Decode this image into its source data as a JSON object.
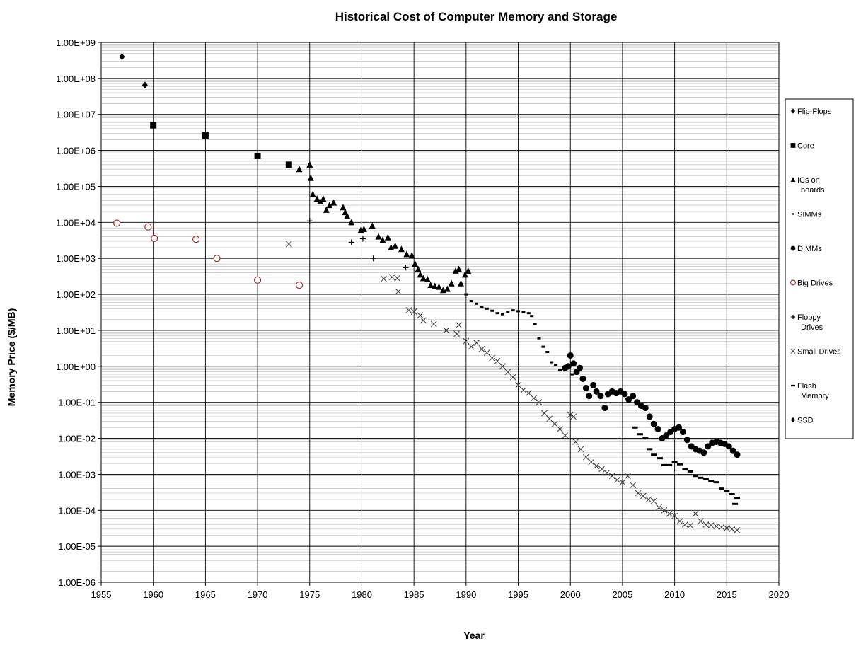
{
  "chart_data": {
    "type": "scatter",
    "title": "Historical Cost of Computer Memory and Storage",
    "xlabel": "Year",
    "ylabel": "Memory Price ($/MB)",
    "xlim": [
      1955,
      2020
    ],
    "ylim": [
      1e-06,
      1000000000.0
    ],
    "y_scale": "log",
    "grid": true,
    "legend_position": "right",
    "x_ticks": [
      "1955",
      "1960",
      "1965",
      "1970",
      "1975",
      "1980",
      "1985",
      "1990",
      "1995",
      "2000",
      "2005",
      "2010",
      "2015",
      "2020"
    ],
    "y_ticks": [
      "1.00E-06",
      "1.00E-05",
      "1.00E-04",
      "1.00E-03",
      "1.00E-02",
      "1.00E-01",
      "1.00E+00",
      "1.00E+01",
      "1.00E+02",
      "1.00E+03",
      "1.00E+04",
      "1.00E+05",
      "1.00E+06",
      "1.00E+07",
      "1.00E+08",
      "1.00E+09"
    ],
    "series": [
      {
        "name": "Flip-Flops",
        "marker": "diamond",
        "color": "#000000",
        "points": [
          [
            1957.0,
            400000000.0
          ],
          [
            1959.2,
            65000000.0
          ]
        ]
      },
      {
        "name": "Core",
        "marker": "square",
        "color": "#000000",
        "points": [
          [
            1960.0,
            5000000.0
          ],
          [
            1965.0,
            2600000.0
          ],
          [
            1970.0,
            700000.0
          ],
          [
            1973.0,
            400000.0
          ]
        ]
      },
      {
        "name": "ICs on\nboards",
        "marker": "triangle",
        "color": "#000000",
        "points": [
          [
            1974.0,
            300000.0
          ],
          [
            1975.0,
            400000.0
          ],
          [
            1975.1,
            170000.0
          ],
          [
            1975.3,
            60000.0
          ],
          [
            1975.7,
            45000.0
          ],
          [
            1976.0,
            38000.0
          ],
          [
            1976.3,
            45000.0
          ],
          [
            1976.6,
            22000.0
          ],
          [
            1976.9,
            30000.0
          ],
          [
            1977.3,
            35000.0
          ],
          [
            1978.2,
            26000.0
          ],
          [
            1978.4,
            19000.0
          ],
          [
            1978.6,
            15000.0
          ],
          [
            1979.0,
            10000.0
          ],
          [
            1979.9,
            6000.0
          ],
          [
            1980.2,
            6500.0
          ],
          [
            1981.0,
            8000.0
          ],
          [
            1981.6,
            4000.0
          ],
          [
            1982.0,
            3200.0
          ],
          [
            1982.5,
            3800.0
          ],
          [
            1982.8,
            2000.0
          ],
          [
            1983.2,
            2200.0
          ],
          [
            1983.8,
            1800.0
          ],
          [
            1984.3,
            1300.0
          ],
          [
            1984.8,
            1200.0
          ],
          [
            1985.1,
            700.0
          ],
          [
            1985.4,
            500.0
          ],
          [
            1985.6,
            350.0
          ],
          [
            1985.9,
            280.0
          ],
          [
            1986.3,
            260.0
          ],
          [
            1986.6,
            180.0
          ],
          [
            1987.0,
            170.0
          ],
          [
            1987.4,
            160.0
          ],
          [
            1987.8,
            130.0
          ],
          [
            1988.2,
            140.0
          ],
          [
            1988.6,
            200.0
          ],
          [
            1989.0,
            450.0
          ],
          [
            1989.3,
            500.0
          ],
          [
            1989.5,
            200.0
          ],
          [
            1989.9,
            350.0
          ],
          [
            1990.2,
            450.0
          ]
        ]
      },
      {
        "name": "SIMMs",
        "marker": "dash",
        "color": "#000000",
        "points": [
          [
            1990.0,
            100.0
          ],
          [
            1990.5,
            65.0
          ],
          [
            1991.0,
            55.0
          ],
          [
            1991.5,
            45.0
          ],
          [
            1992.0,
            40.0
          ],
          [
            1992.5,
            35.0
          ],
          [
            1993.0,
            30.0
          ],
          [
            1993.5,
            28.0
          ],
          [
            1994.0,
            33.0
          ],
          [
            1994.5,
            36.0
          ],
          [
            1995.0,
            34.0
          ],
          [
            1995.5,
            32.0
          ],
          [
            1996.0,
            30.0
          ],
          [
            1996.3,
            25.0
          ],
          [
            1996.6,
            15.0
          ],
          [
            1997.0,
            6.0
          ],
          [
            1997.4,
            3.5
          ],
          [
            1997.8,
            2.5
          ],
          [
            1998.2,
            1.3
          ],
          [
            1998.6,
            1.1
          ],
          [
            1999.0,
            0.8
          ],
          [
            1999.4,
            0.9
          ],
          [
            1999.8,
            1.0
          ],
          [
            2000.2,
            0.6
          ]
        ]
      },
      {
        "name": "DIMMs",
        "marker": "circle",
        "color": "#000000",
        "points": [
          [
            1999.5,
            0.9
          ],
          [
            1999.8,
            1.0
          ],
          [
            2000.0,
            2.0
          ],
          [
            2000.3,
            1.2
          ],
          [
            2000.6,
            0.7
          ],
          [
            2000.9,
            0.9
          ],
          [
            2001.2,
            0.45
          ],
          [
            2001.5,
            0.25
          ],
          [
            2001.8,
            0.15
          ],
          [
            2002.2,
            0.3
          ],
          [
            2002.5,
            0.2
          ],
          [
            2002.9,
            0.15
          ],
          [
            2003.3,
            0.07
          ],
          [
            2003.6,
            0.17
          ],
          [
            2004.0,
            0.2
          ],
          [
            2004.4,
            0.18
          ],
          [
            2004.8,
            0.2
          ],
          [
            2005.2,
            0.17
          ],
          [
            2005.6,
            0.12
          ],
          [
            2006.0,
            0.15
          ],
          [
            2006.4,
            0.1
          ],
          [
            2006.8,
            0.08
          ],
          [
            2007.2,
            0.07
          ],
          [
            2007.6,
            0.04
          ],
          [
            2008.0,
            0.025
          ],
          [
            2008.4,
            0.018
          ],
          [
            2008.8,
            0.01
          ],
          [
            2009.2,
            0.012
          ],
          [
            2009.6,
            0.015
          ],
          [
            2010.0,
            0.018
          ],
          [
            2010.4,
            0.02
          ],
          [
            2010.8,
            0.015
          ],
          [
            2011.2,
            0.009
          ],
          [
            2011.6,
            0.006
          ],
          [
            2012.0,
            0.005
          ],
          [
            2012.4,
            0.0045
          ],
          [
            2012.8,
            0.004
          ],
          [
            2013.2,
            0.006
          ],
          [
            2013.6,
            0.0075
          ],
          [
            2014.0,
            0.008
          ],
          [
            2014.4,
            0.0075
          ],
          [
            2014.8,
            0.007
          ],
          [
            2015.2,
            0.006
          ],
          [
            2015.6,
            0.0045
          ],
          [
            2016.0,
            0.0035
          ]
        ]
      },
      {
        "name": "Big Drives",
        "marker": "open-circle",
        "color": "#a0302a",
        "points": [
          [
            1956.5,
            9500.0
          ],
          [
            1959.5,
            7500.0
          ],
          [
            1960.1,
            3600.0
          ],
          [
            1964.1,
            3400.0
          ],
          [
            1966.1,
            1000.0
          ],
          [
            1970.0,
            250.0
          ],
          [
            1974.0,
            180.0
          ]
        ]
      },
      {
        "name": "Floppy\nDrives",
        "marker": "plus",
        "color": "#000000",
        "points": [
          [
            1975.0,
            11000.0
          ],
          [
            1979.0,
            2800.0
          ],
          [
            1980.1,
            3500.0
          ],
          [
            1981.1,
            1000.0
          ],
          [
            1984.2,
            550.0
          ]
        ]
      },
      {
        "name": "Small Drives",
        "marker": "x",
        "color": "#444444",
        "points": [
          [
            1973.0,
            2500.0
          ],
          [
            1982.1,
            270.0
          ],
          [
            1982.9,
            300.0
          ],
          [
            1983.4,
            280.0
          ],
          [
            1983.5,
            120.0
          ],
          [
            1984.5,
            36.0
          ],
          [
            1985.0,
            33.0
          ],
          [
            1985.6,
            26.0
          ],
          [
            1985.9,
            19.0
          ],
          [
            1986.9,
            15.0
          ],
          [
            1988.1,
            10.0
          ],
          [
            1989.1,
            8.0
          ],
          [
            1989.3,
            14.0
          ],
          [
            1990.0,
            5.0
          ],
          [
            1990.5,
            3.5
          ],
          [
            1991.0,
            4.5
          ],
          [
            1991.5,
            3.0
          ],
          [
            1992.0,
            2.4
          ],
          [
            1992.5,
            1.7
          ],
          [
            1993.0,
            1.4
          ],
          [
            1993.5,
            1.0
          ],
          [
            1994.0,
            0.7
          ],
          [
            1994.5,
            0.5
          ],
          [
            1995.0,
            0.3
          ],
          [
            1995.5,
            0.22
          ],
          [
            1996.0,
            0.18
          ],
          [
            1996.5,
            0.13
          ],
          [
            1997.0,
            0.1
          ],
          [
            1997.5,
            0.05
          ],
          [
            1998.0,
            0.035
          ],
          [
            1998.5,
            0.025
          ],
          [
            1999.0,
            0.018
          ],
          [
            1999.5,
            0.012
          ],
          [
            2000.0,
            0.045
          ],
          [
            2000.3,
            0.04
          ],
          [
            2000.5,
            0.008
          ],
          [
            2001.0,
            0.005
          ],
          [
            2001.5,
            0.003
          ],
          [
            2002.0,
            0.0022
          ],
          [
            2002.5,
            0.0017
          ],
          [
            2003.0,
            0.0014
          ],
          [
            2003.5,
            0.0011
          ],
          [
            2004.0,
            0.0009
          ],
          [
            2004.5,
            0.0007
          ],
          [
            2005.0,
            0.0006
          ],
          [
            2005.5,
            0.0009
          ],
          [
            2006.0,
            0.0005
          ],
          [
            2006.5,
            0.0003
          ],
          [
            2007.0,
            0.00025
          ],
          [
            2007.5,
            0.0002
          ],
          [
            2008.0,
            0.00018
          ],
          [
            2008.5,
            0.00012
          ],
          [
            2009.0,
            0.0001
          ],
          [
            2009.5,
            8e-05
          ],
          [
            2010.0,
            7e-05
          ],
          [
            2010.5,
            5e-05
          ],
          [
            2011.0,
            4e-05
          ],
          [
            2011.5,
            3.8e-05
          ],
          [
            2012.0,
            8e-05
          ],
          [
            2012.5,
            5e-05
          ],
          [
            2013.0,
            4e-05
          ],
          [
            2013.5,
            3.8e-05
          ],
          [
            2014.0,
            3.6e-05
          ],
          [
            2014.5,
            3.4e-05
          ],
          [
            2015.0,
            3.2e-05
          ],
          [
            2015.5,
            3e-05
          ],
          [
            2016.0,
            2.8e-05
          ]
        ]
      },
      {
        "name": "Flash\nMemory",
        "marker": "dash-wide",
        "color": "#000000",
        "points": [
          [
            2005.5,
            0.12
          ],
          [
            2006.2,
            0.02
          ],
          [
            2006.7,
            0.013
          ],
          [
            2007.2,
            0.01
          ],
          [
            2007.6,
            0.005
          ],
          [
            2008.0,
            0.0035
          ],
          [
            2008.6,
            0.0028
          ],
          [
            2009.0,
            0.0018
          ],
          [
            2009.5,
            0.0018
          ],
          [
            2010.0,
            0.0022
          ],
          [
            2010.5,
            0.0019
          ],
          [
            2011.0,
            0.0014
          ],
          [
            2011.5,
            0.0012
          ],
          [
            2012.0,
            0.0009
          ],
          [
            2012.5,
            0.0008
          ],
          [
            2013.0,
            0.00075
          ],
          [
            2013.5,
            0.00065
          ],
          [
            2014.0,
            0.0006
          ],
          [
            2014.5,
            0.0004
          ],
          [
            2015.0,
            0.00035
          ],
          [
            2015.5,
            0.00028
          ],
          [
            2015.8,
            0.00015
          ],
          [
            2016.0,
            0.00022
          ]
        ]
      },
      {
        "name": "SSD",
        "marker": "diamond",
        "color": "#000000",
        "points": []
      }
    ]
  }
}
